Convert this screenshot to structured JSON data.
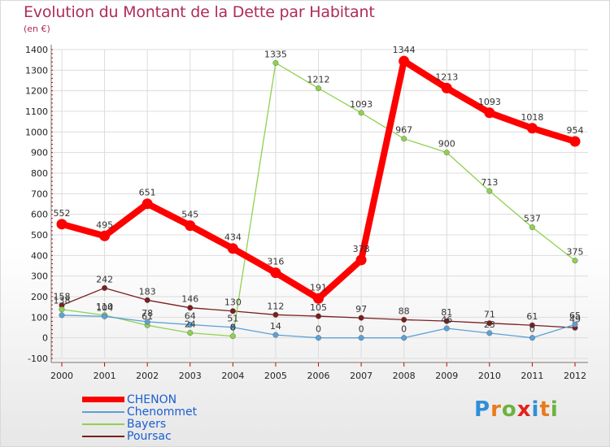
{
  "header": {
    "title": "Evolution du Montant de la Dette par Habitant",
    "subtitle": "(en €)"
  },
  "logo": {
    "text": "Proxiti",
    "letter_colors": [
      "#2e8fd6",
      "#e87b1c",
      "#6cb33f",
      "#e2231a",
      "#2e8fd6",
      "#e87b1c",
      "#6cb33f"
    ]
  },
  "colors": {
    "background": "#ffffff",
    "grid": "#dcdcdc",
    "axis_text": "#222222",
    "value_label": "#333333",
    "title": "#b02b5c"
  },
  "chart_data": {
    "type": "line",
    "x": [
      "2000",
      "2001",
      "2002",
      "2003",
      "2004",
      "2005",
      "2006",
      "2007",
      "2008",
      "2009",
      "2010",
      "2011",
      "2012"
    ],
    "ylim": [
      -100,
      1400
    ],
    "yticks": [
      "-100",
      "0",
      "100",
      "200",
      "300",
      "400",
      "500",
      "600",
      "700",
      "800",
      "900",
      "1000",
      "1100",
      "1200",
      "1300",
      "1400"
    ],
    "grid": true,
    "legend_position": "bottom-left",
    "series": [
      {
        "name": "CHENON",
        "color": "#ff0000",
        "values": [
          552,
          495,
          651,
          545,
          434,
          316,
          191,
          378,
          1344,
          1213,
          1093,
          1018,
          954
        ],
        "labels": [
          "552",
          "495",
          "651",
          "545",
          "434",
          "316",
          "191",
          "378",
          "1344",
          "1213",
          "1093",
          "1018",
          "954"
        ]
      },
      {
        "name": "Chenommet",
        "color": "#5ba1d6",
        "values": [
          110,
          104,
          78,
          64,
          51,
          14,
          0,
          0,
          0,
          46,
          23,
          0,
          65
        ],
        "labels": [
          "",
          "104",
          "78",
          "64",
          "51",
          "14",
          "0",
          "0",
          "0",
          "46",
          "23",
          "0",
          "65"
        ]
      },
      {
        "name": "Bayers",
        "color": "#8fd14f",
        "values": [
          138,
          110,
          61,
          24,
          8,
          1335,
          1212,
          1093,
          967,
          900,
          713,
          537,
          375
        ],
        "labels": [
          "138",
          "110",
          "61",
          "24",
          "8",
          "1335",
          "1212",
          "1093",
          "967",
          "900",
          "713",
          "537",
          "375"
        ]
      },
      {
        "name": "Poursac",
        "color": "#7a1f1f",
        "values": [
          158,
          242,
          183,
          146,
          130,
          112,
          105,
          97,
          88,
          81,
          71,
          61,
          49
        ],
        "labels": [
          "158",
          "242",
          "183",
          "146",
          "130",
          "112",
          "105",
          "97",
          "88",
          "81",
          "71",
          "61",
          "49"
        ]
      }
    ]
  }
}
